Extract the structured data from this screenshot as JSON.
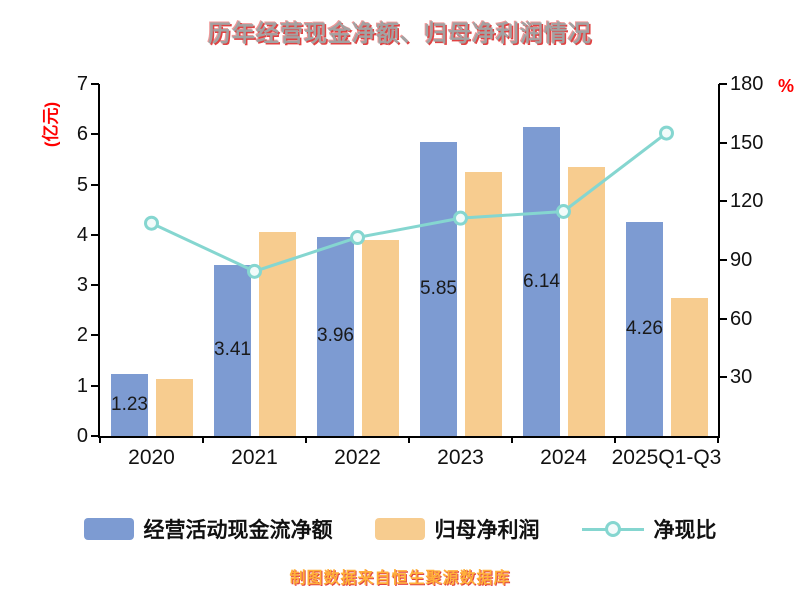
{
  "title": "历年经营现金净额、归母净利润情况",
  "caption": "制图数据来自恒生聚源数据库",
  "legend": [
    {
      "key": "operating-cash-flow",
      "label": "经营活动现金流净额",
      "type": "bar",
      "color": "#7d9bd2"
    },
    {
      "key": "net-profit",
      "label": "归母净利润",
      "type": "bar",
      "color": "#f7cc8f"
    },
    {
      "key": "net-cash-ratio",
      "label": "净现比",
      "type": "line",
      "color": "#85d6d0"
    }
  ],
  "chart_data": {
    "type": "bar",
    "subtype": "grouped-bars-with-line",
    "title": "历年经营现金净额、归母净利润情况",
    "categories": [
      "2020",
      "2021",
      "2022",
      "2023",
      "2024",
      "2025Q1-Q3"
    ],
    "series": [
      {
        "name": "经营活动现金流净额",
        "type": "bar",
        "axis": "left",
        "color": "#7d9bd2",
        "values": [
          1.23,
          3.41,
          3.96,
          5.85,
          6.14,
          4.26
        ],
        "value_labels": [
          "1.23",
          "3.41",
          "3.96",
          "5.85",
          "6.14",
          "4.26"
        ]
      },
      {
        "name": "归母净利润",
        "type": "bar",
        "axis": "left",
        "color": "#f7cc8f",
        "values": [
          1.13,
          4.05,
          3.9,
          5.25,
          5.35,
          2.75
        ]
      },
      {
        "name": "净现比",
        "type": "line",
        "axis": "right",
        "color": "#85d6d0",
        "values": [
          108.8,
          84.2,
          101.5,
          111.4,
          114.8,
          154.9
        ]
      }
    ],
    "left_axis": {
      "label": "(亿元)",
      "min": 0,
      "max": 7,
      "ticks": [
        0,
        1,
        2,
        3,
        4,
        5,
        6,
        7
      ]
    },
    "right_axis": {
      "label": "%",
      "min": 0,
      "max": 180,
      "ticks": [
        30,
        60,
        90,
        120,
        150,
        180
      ]
    },
    "grid": false,
    "legend_position": "bottom"
  }
}
